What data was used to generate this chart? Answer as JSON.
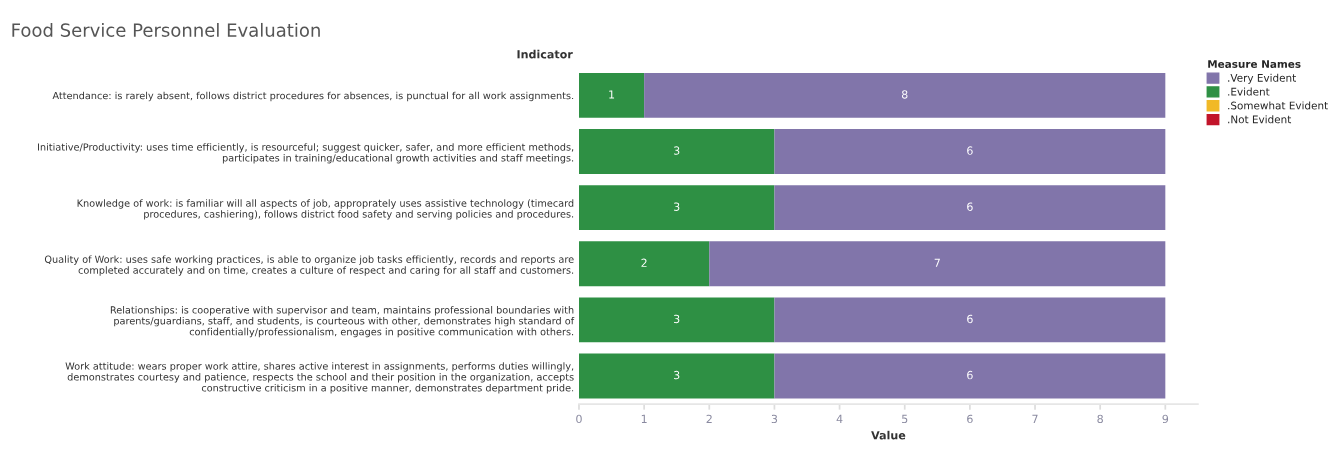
{
  "chart_data": {
    "type": "bar",
    "orientation": "horizontal",
    "stacked": true,
    "title": "Food Service Personnel Evaluation",
    "ylabel": "Indicator",
    "xlabel": "Value",
    "legend_title": "Measure Names",
    "categories": [
      "Attendance: is rarely absent, follows district procedures for absences, is punctual for all work assignments.",
      "Initiative/Productivity: uses time efficiently, is resourceful; suggest quicker, safer, and more efficient methods,\nparticipates in training/educational growth activities and staff meetings.",
      "Knowledge of work: is familiar will all aspects of job, approprately uses assistive technology (timecard\nprocedures, cashiering), follows district food safety and serving policies and procedures.",
      "Quality of Work: uses safe working practices, is able to organize job tasks efficiently, records and reports are\ncompleted accurately and on time, creates a culture of respect and caring for all staff and customers.",
      "Relationships: is cooperative with supervisor and team, maintains professional boundaries with\nparents/guardians, staff, and students, is courteous with other, demonstrates high standard of\nconfidentially/professionalism, engages in positive communication with others.",
      "Work attitude: wears proper work attire, shares active interest in assignments, performs duties willingly,\ndemonstrates courtesy and patience, respects the school and their position in the organization, accepts\nconstructive criticism in a positive manner, demonstrates department pride."
    ],
    "series": [
      {
        "name": ".Not Evident",
        "color": "#c2142a",
        "values": [
          0,
          0,
          0,
          0,
          0,
          0
        ],
        "value_labels": [
          null,
          null,
          null,
          null,
          null,
          null
        ]
      },
      {
        "name": ".Somewhat Evident",
        "color": "#f1b927",
        "values": [
          0,
          0,
          0,
          0,
          0,
          0
        ],
        "value_labels": [
          null,
          null,
          null,
          null,
          null,
          null
        ]
      },
      {
        "name": ".Evident",
        "color": "#2e9044",
        "values": [
          1,
          3,
          3,
          2,
          3,
          3
        ],
        "value_labels": [
          "1",
          "3",
          "3",
          "2",
          "3",
          "3"
        ]
      },
      {
        "name": ".Very Evident",
        "color": "#8175aa",
        "values": [
          8,
          6,
          6,
          7,
          6,
          6
        ],
        "value_labels": [
          "8",
          "6",
          "6",
          "7",
          "6",
          "6"
        ]
      }
    ],
    "xlim": [
      0,
      9.5
    ],
    "xticks": [
      0,
      1,
      2,
      3,
      4,
      5,
      6,
      7,
      8,
      9
    ],
    "grid": false,
    "legend": "right"
  }
}
